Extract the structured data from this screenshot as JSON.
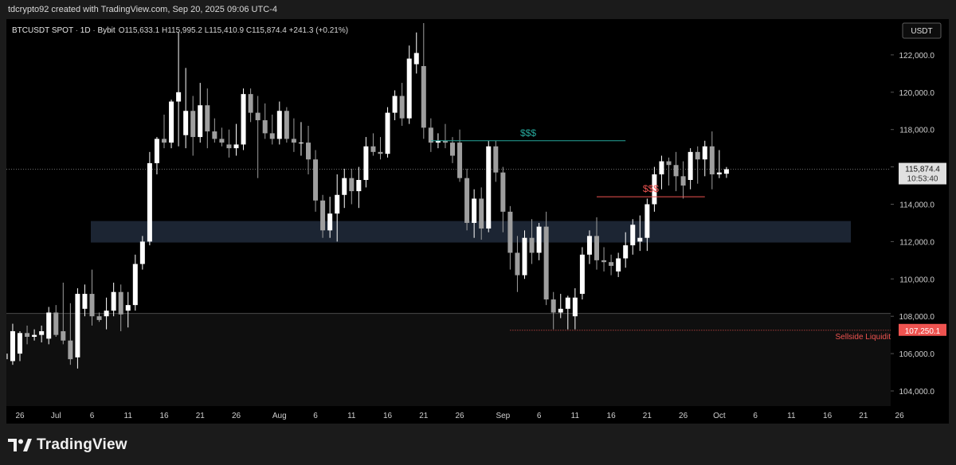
{
  "header": {
    "credit": "tdcrypto92 created with TradingView.com, Sep 20, 2025 09:06 UTC-4"
  },
  "symbol_bar": {
    "symbol": "BTCUSDT SPOT",
    "interval": "1D",
    "exchange": "Bybit",
    "ohlc": "O115,633.1 H115,995.2 L115,410.9 C115,874.4 +241.3 (+0.21%)"
  },
  "currency_button": "USDT",
  "price_tag": {
    "price": "115,874.4",
    "countdown": "10:53:40"
  },
  "sellside_tag": {
    "price": "107,250.1"
  },
  "annotations": {
    "buyside": "$$$",
    "sellside": "$$$",
    "sellside_label": "Sellside Liquidity"
  },
  "footer": {
    "brand": "TradingView"
  },
  "colors": {
    "bull": "#ffffff",
    "bear": "#9e9e9e",
    "buyside_line": "#26a69a",
    "sellside_line": "#ef5350",
    "zone": "#1c2533",
    "price_tag_bg": "#e0e0e0"
  },
  "chart_data": {
    "type": "candlestick",
    "y_ticks": [
      "104,000.0",
      "106,000.0",
      "108,000.0",
      "110,000.0",
      "112,000.0",
      "114,000.0",
      "116,000.0",
      "118,000.0",
      "120,000.0",
      "122,000.0"
    ],
    "y_tick_values": [
      104000,
      106000,
      108000,
      110000,
      112000,
      114000,
      116000,
      118000,
      120000,
      122000
    ],
    "ylim": [
      103000,
      123500
    ],
    "x_ticks": [
      {
        "label": "26",
        "day": 0
      },
      {
        "label": "Jul",
        "day": 5
      },
      {
        "label": "6",
        "day": 10
      },
      {
        "label": "11",
        "day": 15
      },
      {
        "label": "16",
        "day": 20
      },
      {
        "label": "21",
        "day": 25
      },
      {
        "label": "26",
        "day": 30
      },
      {
        "label": "Aug",
        "day": 36
      },
      {
        "label": "6",
        "day": 41
      },
      {
        "label": "11",
        "day": 46
      },
      {
        "label": "16",
        "day": 51
      },
      {
        "label": "21",
        "day": 56
      },
      {
        "label": "26",
        "day": 61
      },
      {
        "label": "Sep",
        "day": 67
      },
      {
        "label": "6",
        "day": 72
      },
      {
        "label": "11",
        "day": 77
      },
      {
        "label": "16",
        "day": 82
      },
      {
        "label": "21",
        "day": 87
      },
      {
        "label": "26",
        "day": 92
      },
      {
        "label": "Oct",
        "day": 97
      },
      {
        "label": "6",
        "day": 102
      },
      {
        "label": "11",
        "day": 107
      },
      {
        "label": "16",
        "day": 112
      },
      {
        "label": "21",
        "day": 117
      },
      {
        "label": "26",
        "day": 122
      }
    ],
    "demand_zone": {
      "low": 111950,
      "high": 113100
    },
    "horizontal_levels": [
      {
        "name": "current-price",
        "price": 115874.4
      },
      {
        "name": "range-low",
        "price": 108150
      }
    ],
    "buyside_liquidity": {
      "price": 117400,
      "from_day": 57,
      "to_day": 84
    },
    "sellside_short": {
      "price": 114400,
      "from_day": 80,
      "to_day": 95
    },
    "sellside_liquidity": {
      "price": 107250.1,
      "from_day": 68
    },
    "candles": [
      {
        "day": -2,
        "o": 106000,
        "h": 106500,
        "l": 105300,
        "c": 105700
      },
      {
        "day": -1,
        "o": 105600,
        "h": 107600,
        "l": 105400,
        "c": 107200
      },
      {
        "day": 0,
        "o": 106000,
        "h": 107200,
        "l": 105600,
        "c": 107100
      },
      {
        "day": 1,
        "o": 107100,
        "h": 107500,
        "l": 106500,
        "c": 106900
      },
      {
        "day": 2,
        "o": 106900,
        "h": 107300,
        "l": 106700,
        "c": 107000
      },
      {
        "day": 3,
        "o": 107000,
        "h": 107500,
        "l": 106600,
        "c": 107200
      },
      {
        "day": 4,
        "o": 106800,
        "h": 108500,
        "l": 106500,
        "c": 108200
      },
      {
        "day": 5,
        "o": 108200,
        "h": 108600,
        "l": 106900,
        "c": 107000
      },
      {
        "day": 6,
        "o": 107200,
        "h": 109800,
        "l": 106500,
        "c": 106700
      },
      {
        "day": 7,
        "o": 106700,
        "h": 108700,
        "l": 105400,
        "c": 105700
      },
      {
        "day": 8,
        "o": 105800,
        "h": 109500,
        "l": 105200,
        "c": 109200
      },
      {
        "day": 9,
        "o": 108400,
        "h": 109700,
        "l": 108000,
        "c": 109200
      },
      {
        "day": 10,
        "o": 109200,
        "h": 110500,
        "l": 107500,
        "c": 108000
      },
      {
        "day": 11,
        "o": 108000,
        "h": 108200,
        "l": 107700,
        "c": 107800
      },
      {
        "day": 12,
        "o": 108000,
        "h": 109000,
        "l": 107300,
        "c": 108300
      },
      {
        "day": 13,
        "o": 108300,
        "h": 109800,
        "l": 108000,
        "c": 109300
      },
      {
        "day": 14,
        "o": 109300,
        "h": 109700,
        "l": 107200,
        "c": 108100
      },
      {
        "day": 15,
        "o": 108300,
        "h": 109300,
        "l": 107400,
        "c": 108600
      },
      {
        "day": 16,
        "o": 108600,
        "h": 111300,
        "l": 108300,
        "c": 110800
      },
      {
        "day": 17,
        "o": 110800,
        "h": 112300,
        "l": 110500,
        "c": 112000
      },
      {
        "day": 18,
        "o": 112000,
        "h": 116800,
        "l": 111800,
        "c": 116200
      },
      {
        "day": 19,
        "o": 116200,
        "h": 117600,
        "l": 115600,
        "c": 117500
      },
      {
        "day": 20,
        "o": 117500,
        "h": 118800,
        "l": 117000,
        "c": 117300
      },
      {
        "day": 21,
        "o": 117300,
        "h": 119600,
        "l": 117000,
        "c": 119500
      },
      {
        "day": 22,
        "o": 119500,
        "h": 123200,
        "l": 117100,
        "c": 120000
      },
      {
        "day": 23,
        "o": 117700,
        "h": 121300,
        "l": 117000,
        "c": 119000
      },
      {
        "day": 24,
        "o": 119000,
        "h": 119800,
        "l": 116600,
        "c": 117600
      },
      {
        "day": 25,
        "o": 117600,
        "h": 120500,
        "l": 117300,
        "c": 119300
      },
      {
        "day": 26,
        "o": 119300,
        "h": 120200,
        "l": 117000,
        "c": 117900
      },
      {
        "day": 27,
        "o": 117900,
        "h": 118600,
        "l": 117300,
        "c": 117500
      },
      {
        "day": 28,
        "o": 117500,
        "h": 118100,
        "l": 117100,
        "c": 117300
      },
      {
        "day": 29,
        "o": 117200,
        "h": 118000,
        "l": 116500,
        "c": 117000
      },
      {
        "day": 30,
        "o": 117000,
        "h": 118300,
        "l": 116600,
        "c": 117200
      },
      {
        "day": 31,
        "o": 117200,
        "h": 120200,
        "l": 116900,
        "c": 119900
      },
      {
        "day": 32,
        "o": 119900,
        "h": 120200,
        "l": 118400,
        "c": 118900
      },
      {
        "day": 33,
        "o": 118900,
        "h": 119800,
        "l": 115400,
        "c": 118500
      },
      {
        "day": 34,
        "o": 118500,
        "h": 119400,
        "l": 117500,
        "c": 117800
      },
      {
        "day": 35,
        "o": 117800,
        "h": 118800,
        "l": 117200,
        "c": 117500
      },
      {
        "day": 36,
        "o": 117500,
        "h": 119500,
        "l": 117200,
        "c": 119000
      },
      {
        "day": 37,
        "o": 119000,
        "h": 119200,
        "l": 117300,
        "c": 117500
      },
      {
        "day": 38,
        "o": 117500,
        "h": 118600,
        "l": 116800,
        "c": 117300
      },
      {
        "day": 39,
        "o": 117300,
        "h": 118400,
        "l": 116600,
        "c": 117300
      },
      {
        "day": 40,
        "o": 117300,
        "h": 118200,
        "l": 115600,
        "c": 116400
      },
      {
        "day": 41,
        "o": 116400,
        "h": 116900,
        "l": 113600,
        "c": 114200
      },
      {
        "day": 42,
        "o": 114200,
        "h": 114500,
        "l": 112200,
        "c": 112600
      },
      {
        "day": 43,
        "o": 112600,
        "h": 114400,
        "l": 112200,
        "c": 113500
      },
      {
        "day": 44,
        "o": 113500,
        "h": 115600,
        "l": 112000,
        "c": 114500
      },
      {
        "day": 45,
        "o": 114500,
        "h": 115900,
        "l": 113800,
        "c": 115400
      },
      {
        "day": 46,
        "o": 115400,
        "h": 115900,
        "l": 114000,
        "c": 114700
      },
      {
        "day": 47,
        "o": 114700,
        "h": 116000,
        "l": 113800,
        "c": 115300
      },
      {
        "day": 48,
        "o": 115300,
        "h": 117600,
        "l": 114900,
        "c": 117100
      },
      {
        "day": 49,
        "o": 117100,
        "h": 117800,
        "l": 116600,
        "c": 116800
      },
      {
        "day": 50,
        "o": 116800,
        "h": 117600,
        "l": 116400,
        "c": 116700
      },
      {
        "day": 51,
        "o": 116700,
        "h": 119200,
        "l": 116500,
        "c": 118900
      },
      {
        "day": 52,
        "o": 118900,
        "h": 120100,
        "l": 118500,
        "c": 119800
      },
      {
        "day": 53,
        "o": 119800,
        "h": 120500,
        "l": 118200,
        "c": 118600
      },
      {
        "day": 54,
        "o": 118600,
        "h": 122500,
        "l": 118300,
        "c": 121800
      },
      {
        "day": 55,
        "o": 121500,
        "h": 123200,
        "l": 121000,
        "c": 122100
      },
      {
        "day": 56,
        "o": 121400,
        "h": 123700,
        "l": 117500,
        "c": 118100
      },
      {
        "day": 57,
        "o": 118100,
        "h": 118600,
        "l": 116800,
        "c": 117300
      },
      {
        "day": 58,
        "o": 117300,
        "h": 117800,
        "l": 117000,
        "c": 117400
      },
      {
        "day": 59,
        "o": 117400,
        "h": 118300,
        "l": 117000,
        "c": 117300
      },
      {
        "day": 60,
        "o": 117300,
        "h": 117600,
        "l": 116200,
        "c": 116600
      },
      {
        "day": 61,
        "o": 117300,
        "h": 118000,
        "l": 115200,
        "c": 115400
      },
      {
        "day": 62,
        "o": 115400,
        "h": 115900,
        "l": 112600,
        "c": 113000
      },
      {
        "day": 63,
        "o": 113000,
        "h": 114800,
        "l": 112200,
        "c": 114300
      },
      {
        "day": 64,
        "o": 114300,
        "h": 114900,
        "l": 112100,
        "c": 112700
      },
      {
        "day": 65,
        "o": 112700,
        "h": 117400,
        "l": 112500,
        "c": 117100
      },
      {
        "day": 66,
        "o": 117100,
        "h": 117400,
        "l": 115200,
        "c": 115700
      },
      {
        "day": 67,
        "o": 115700,
        "h": 116000,
        "l": 112500,
        "c": 113600
      },
      {
        "day": 68,
        "o": 113600,
        "h": 113900,
        "l": 110500,
        "c": 111400
      },
      {
        "day": 69,
        "o": 111400,
        "h": 112300,
        "l": 109300,
        "c": 110200
      },
      {
        "day": 70,
        "o": 110200,
        "h": 112600,
        "l": 110000,
        "c": 112200
      },
      {
        "day": 71,
        "o": 112200,
        "h": 113200,
        "l": 110800,
        "c": 111400
      },
      {
        "day": 72,
        "o": 111400,
        "h": 113000,
        "l": 111000,
        "c": 112800
      },
      {
        "day": 73,
        "o": 112800,
        "h": 113600,
        "l": 108600,
        "c": 108900
      },
      {
        "day": 74,
        "o": 108900,
        "h": 109300,
        "l": 107300,
        "c": 108200
      },
      {
        "day": 75,
        "o": 108200,
        "h": 109200,
        "l": 107900,
        "c": 108400
      },
      {
        "day": 76,
        "o": 108400,
        "h": 109100,
        "l": 107300,
        "c": 109000
      },
      {
        "day": 77,
        "o": 108000,
        "h": 109500,
        "l": 107300,
        "c": 109000
      },
      {
        "day": 78,
        "o": 109200,
        "h": 111700,
        "l": 108900,
        "c": 111300
      },
      {
        "day": 79,
        "o": 111300,
        "h": 112600,
        "l": 110800,
        "c": 112300
      },
      {
        "day": 80,
        "o": 112300,
        "h": 113300,
        "l": 110500,
        "c": 111000
      },
      {
        "day": 81,
        "o": 111000,
        "h": 111700,
        "l": 110400,
        "c": 110900
      },
      {
        "day": 82,
        "o": 110900,
        "h": 111300,
        "l": 110200,
        "c": 110700
      },
      {
        "day": 83,
        "o": 110400,
        "h": 111400,
        "l": 110100,
        "c": 111100
      },
      {
        "day": 84,
        "o": 111100,
        "h": 112500,
        "l": 110600,
        "c": 111800
      },
      {
        "day": 85,
        "o": 111800,
        "h": 113200,
        "l": 111300,
        "c": 112900
      },
      {
        "day": 86,
        "o": 112000,
        "h": 113400,
        "l": 111500,
        "c": 112200
      },
      {
        "day": 87,
        "o": 112200,
        "h": 114300,
        "l": 111500,
        "c": 114000
      },
      {
        "day": 88,
        "o": 114000,
        "h": 116000,
        "l": 113600,
        "c": 115600
      },
      {
        "day": 89,
        "o": 115600,
        "h": 116600,
        "l": 114800,
        "c": 116300
      },
      {
        "day": 90,
        "o": 116300,
        "h": 116500,
        "l": 115000,
        "c": 116100
      },
      {
        "day": 91,
        "o": 116100,
        "h": 116800,
        "l": 114700,
        "c": 115500
      },
      {
        "day": 92,
        "o": 115500,
        "h": 116300,
        "l": 114300,
        "c": 115000
      },
      {
        "day": 93,
        "o": 115300,
        "h": 117000,
        "l": 114800,
        "c": 116800
      },
      {
        "day": 94,
        "o": 116800,
        "h": 117100,
        "l": 115100,
        "c": 116400
      },
      {
        "day": 95,
        "o": 116400,
        "h": 117400,
        "l": 115500,
        "c": 117100
      },
      {
        "day": 96,
        "o": 117100,
        "h": 117900,
        "l": 114800,
        "c": 115600
      },
      {
        "day": 97,
        "o": 115600,
        "h": 116900,
        "l": 115400,
        "c": 115700
      },
      {
        "day": 98,
        "o": 115633.1,
        "h": 115995.2,
        "l": 115410.9,
        "c": 115874.4
      }
    ]
  }
}
